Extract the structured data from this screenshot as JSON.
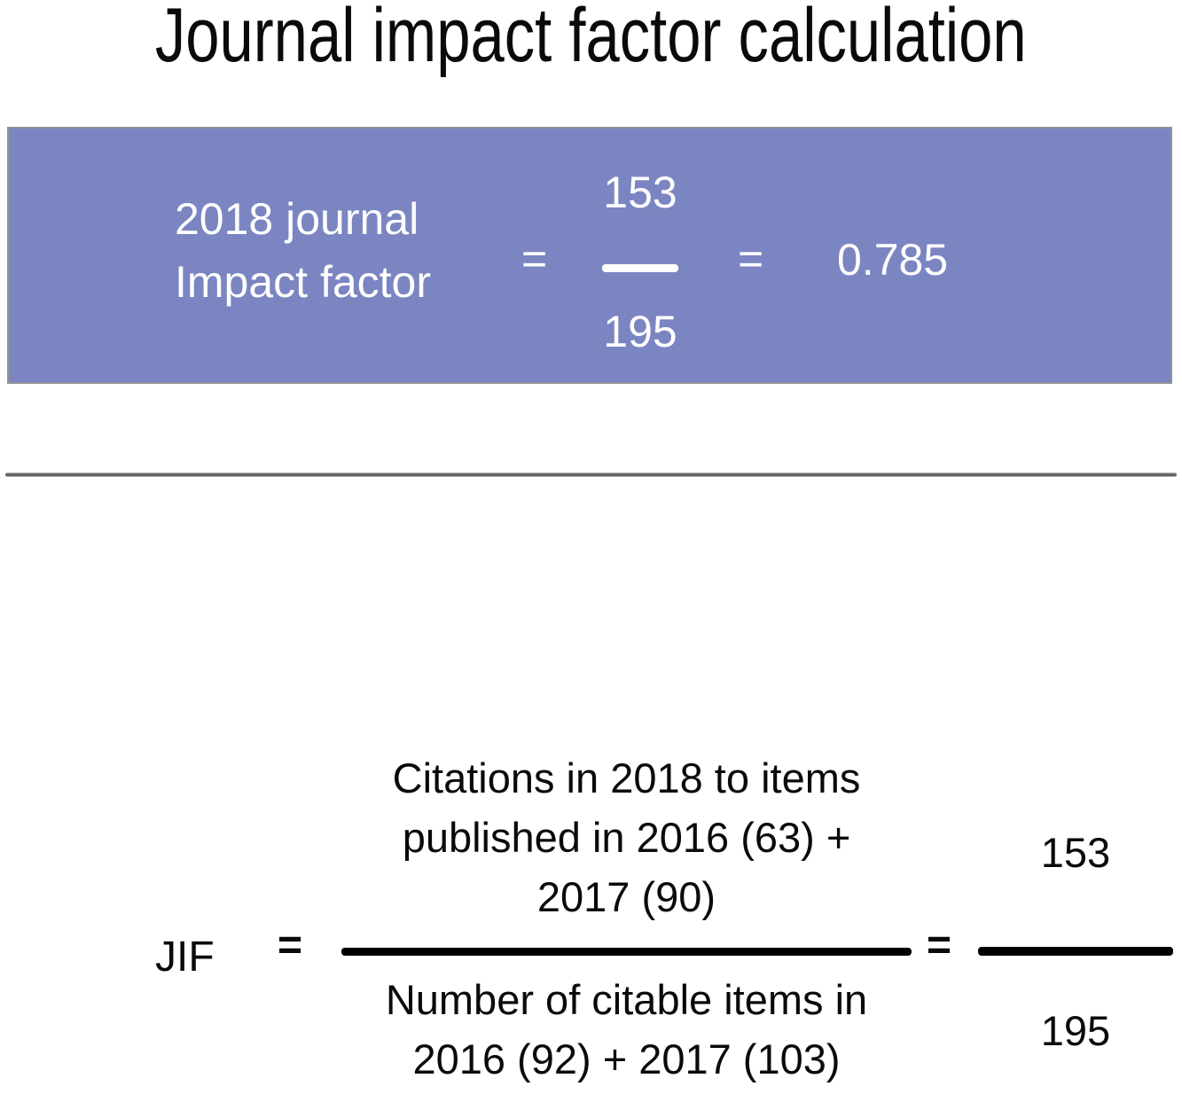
{
  "title": "Journal impact factor calculation",
  "banner": {
    "label_line1": "2018 journal",
    "label_line2": "Impact factor",
    "equals_1": "=",
    "fraction_numerator": "153",
    "fraction_denominator": "195",
    "equals_2": "=",
    "result": "0.785",
    "background_color": "#7b85c2",
    "border_color": "#94949c",
    "text_color": "#ffffff"
  },
  "formula": {
    "lhs_label": "JIF",
    "equals_1": "=",
    "numerator_lines": [
      "Citations in 2018 to items",
      "published in 2016 (63) +",
      "2017 (90)"
    ],
    "denominator_lines": [
      "Number of citable items in",
      "2016 (92) + 2017 (103)"
    ],
    "equals_2": "=",
    "result_numerator": "153",
    "result_denominator": "195"
  },
  "colors": {
    "body_text": "#0a0a0a",
    "fraction_bar": "#000000",
    "divider": "#5a5a5a",
    "background": "#ffffff"
  }
}
